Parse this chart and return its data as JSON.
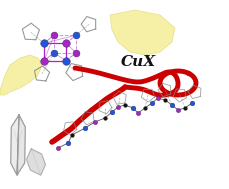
{
  "bg_color": "#ffffff",
  "cux_text": "CuX",
  "cux_fontsize": 11,
  "cux_fontstyle": "italic",
  "cux_fontweight": "bold",
  "hand_color": "#f5f0a0",
  "hand_edge_color": "#e0d870",
  "cube_mn_color": "#2255dd",
  "cube_p_color": "#aa22cc",
  "cube_edge_color": "#aa22cc",
  "red_color": "#cc0000",
  "red_lw": 3.5,
  "cp_ring_color": "#888888",
  "bond_color": "#555555",
  "polymer_mn_color": "#2255dd",
  "polymer_p_color": "#aa22cc",
  "polymer_cu_color": "#111111",
  "crystal_fill": "#e0e0e0",
  "crystal_edge": "#888888"
}
